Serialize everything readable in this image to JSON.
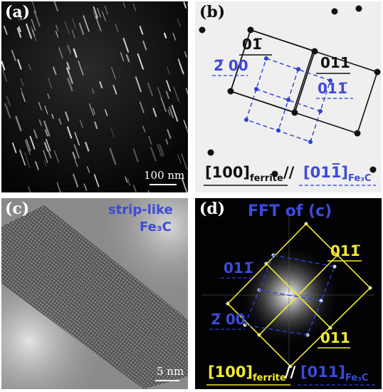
{
  "panels": {
    "a": {
      "label": "(a)",
      "scale_bar": "100 nm"
    },
    "b": {
      "label": "(b)",
      "index_top_ferrite": "01̅",
      "index_right_ferrite": "011",
      "index_left_fe3c": "2̅ 00",
      "index_right_fe3c": "011̅",
      "zone_ferrite": "[100]",
      "zone_ferrite_sub": "ferrite",
      "zone_sep": "//",
      "zone_fe3c": "[011̅]",
      "zone_fe3c_sub": "Fe₃C"
    },
    "c": {
      "label": "(c)",
      "caption_line1": "strip-like",
      "caption_line2": "Fe₃C",
      "scale_bar": "5 nm"
    },
    "d": {
      "label": "(d)",
      "title": "FFT of (c)",
      "index_top_right_ferrite": "011̅",
      "index_bottom_ferrite": "011",
      "index_left_fe3c": "011̅",
      "index_lower_left_fe3c": "2̅ 00",
      "zone_ferrite": "[100]",
      "zone_ferrite_sub": "ferrite",
      "zone_sep": "//",
      "zone_fe3c": "[011]",
      "zone_fe3c_sub": "Fe₃C"
    }
  },
  "colors": {
    "ferrite_lattice_b": "#111111",
    "fe3c_lattice": "#2a3fd6",
    "ferrite_lattice_d": "#f2ea2a",
    "label_blue": "#3b4bd8"
  }
}
